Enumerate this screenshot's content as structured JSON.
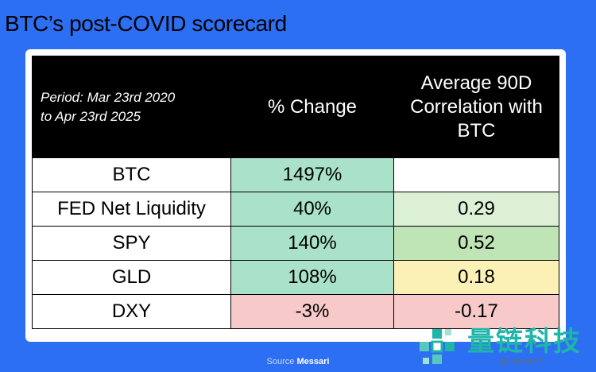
{
  "title": "BTC’s post-COVID scorecard",
  "source_label": "Source",
  "source_brand": "Messari",
  "watermark": {
    "name": "量链科技",
    "url": "QFSP.NET"
  },
  "chart_data": {
    "type": "table",
    "header": {
      "period_line1": "Period: Mar 23rd 2020",
      "period_line2": "to Apr 23rd 2025",
      "change": "% Change",
      "corr_line1": "Average 90D",
      "corr_line2": "Correlation with",
      "corr_line3": "BTC"
    },
    "rows": [
      {
        "asset": "BTC",
        "change": "1497%",
        "correlation": "",
        "change_color": "#a9e2c8",
        "corr_color": "#ffffff"
      },
      {
        "asset": "FED Net Liquidity",
        "change": "40%",
        "correlation": "0.29",
        "change_color": "#a9e2c8",
        "corr_color": "#dcf0d6"
      },
      {
        "asset": "SPY",
        "change": "140%",
        "correlation": "0.52",
        "change_color": "#a9e2c8",
        "corr_color": "#bfe4b5"
      },
      {
        "asset": "GLD",
        "change": "108%",
        "correlation": "0.18",
        "change_color": "#a9e2c8",
        "corr_color": "#fbf0b6"
      },
      {
        "asset": "DXY",
        "change": "-3%",
        "correlation": "-0.17",
        "change_color": "#f7c9c9",
        "corr_color": "#f7c9c9"
      }
    ]
  }
}
